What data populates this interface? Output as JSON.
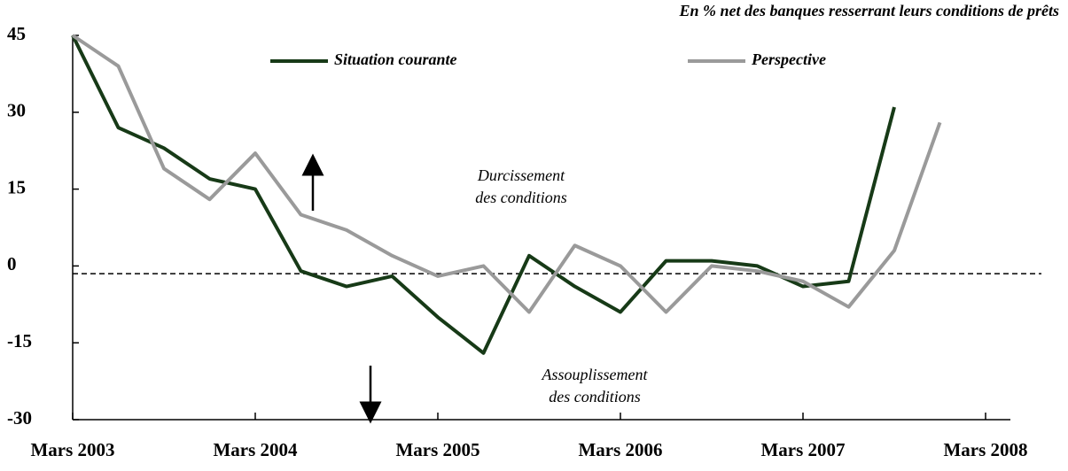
{
  "chart_data": {
    "type": "line",
    "subtitle": "En % net des banques resserrant leurs conditions de prêts",
    "categories": [
      "Mars 2003",
      null,
      null,
      null,
      "Mars 2004",
      null,
      null,
      null,
      "Mars 2005",
      null,
      null,
      null,
      "Mars 2006",
      null,
      null,
      null,
      "Mars 2007",
      null,
      null,
      null,
      "Mars 2008"
    ],
    "series": [
      {
        "name": "Situation courante",
        "color": "#173a17",
        "values": [
          45,
          27,
          23,
          17,
          15,
          -1,
          -4,
          -2,
          -10,
          -17,
          2,
          -4,
          -9,
          1,
          1,
          0,
          -4,
          -3,
          31,
          null,
          null
        ]
      },
      {
        "name": "Perspective",
        "color": "#9a9a9a",
        "values": [
          45,
          39,
          19,
          13,
          22,
          10,
          7,
          2,
          -2,
          0,
          -9,
          4,
          0,
          -9,
          0,
          -1,
          -3,
          -8,
          3,
          28,
          null
        ]
      }
    ],
    "ylim": [
      -30,
      45
    ],
    "yticks": [
      45,
      30,
      15,
      0,
      -15,
      -30
    ],
    "reference_line": -1.5,
    "annotations": [
      [
        "Durcissement",
        "des conditions"
      ],
      [
        "Assouplissement",
        "des conditions"
      ]
    ]
  }
}
